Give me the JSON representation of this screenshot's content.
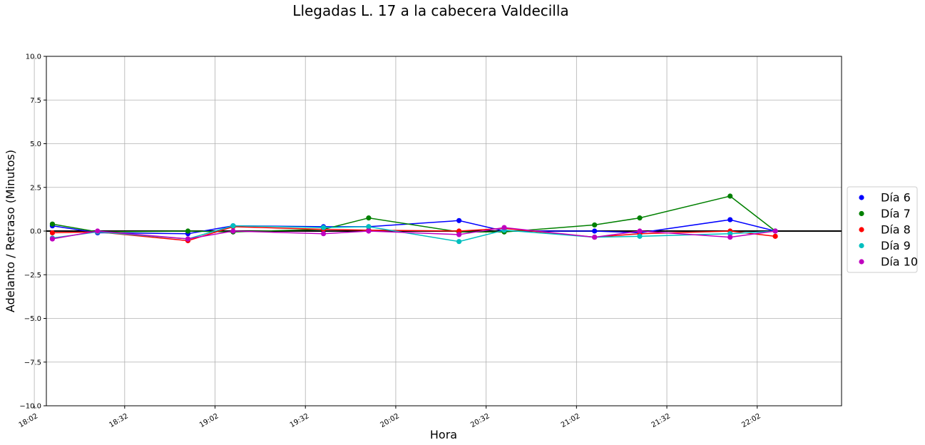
{
  "chart_data": {
    "type": "line",
    "title": "Llegadas L. 17 a la cabecera Valdecilla",
    "xlabel": "Hora",
    "ylabel": "Adelanto / Retraso (Minutos)",
    "x_domain_minutes": [
      1086,
      1350
    ],
    "x_ticks": [
      "18:02",
      "18:32",
      "19:02",
      "19:32",
      "20:02",
      "20:32",
      "21:02",
      "21:32",
      "22:02"
    ],
    "x_tick_minutes": [
      1082,
      1112,
      1142,
      1172,
      1202,
      1232,
      1262,
      1292,
      1322
    ],
    "ylim": [
      -10,
      10
    ],
    "y_ticks": [
      -10.0,
      -7.5,
      -5.0,
      -2.5,
      0.0,
      2.5,
      5.0,
      7.5,
      10.0
    ],
    "y_tick_labels": [
      "−10.0",
      "−7.5",
      "−5.0",
      "−2.5",
      "0.0",
      "2.5",
      "5.0",
      "7.5",
      "10.0"
    ],
    "grid": true,
    "reference_line_y": 0,
    "legend_position": "right-outside",
    "x": [
      "18:08",
      "18:23",
      "18:53",
      "19:08",
      "19:38",
      "19:53",
      "20:23",
      "20:38",
      "21:08",
      "21:23",
      "21:53",
      "22:08"
    ],
    "x_minutes": [
      1088,
      1103,
      1133,
      1148,
      1178,
      1193,
      1223,
      1238,
      1268,
      1283,
      1313,
      1328
    ],
    "series": [
      {
        "name": "Día 6",
        "color": "#0000ff",
        "values": [
          0.3,
          -0.1,
          -0.15,
          0.3,
          0.25,
          0.25,
          0.6,
          0.0,
          0.0,
          -0.1,
          0.65,
          0.0
        ]
      },
      {
        "name": "Día 7",
        "color": "#008000",
        "values": [
          0.4,
          -0.05,
          0.0,
          -0.05,
          0.1,
          0.75,
          -0.05,
          -0.05,
          0.35,
          0.75,
          2.0,
          0.0
        ]
      },
      {
        "name": "Día 8",
        "color": "#ff0000",
        "values": [
          -0.1,
          -0.05,
          -0.55,
          0.25,
          0.1,
          0.05,
          0.0,
          0.15,
          -0.35,
          -0.15,
          0.0,
          -0.3
        ]
      },
      {
        "name": "Día 9",
        "color": "#00bfbf",
        "values": [
          -0.4,
          -0.05,
          -0.45,
          0.3,
          0.2,
          0.25,
          -0.6,
          0.05,
          -0.35,
          -0.3,
          -0.15,
          0.0
        ]
      },
      {
        "name": "Día 10",
        "color": "#bf00bf",
        "values": [
          -0.45,
          0.0,
          -0.45,
          0.0,
          -0.15,
          0.0,
          -0.2,
          0.2,
          -0.35,
          0.0,
          -0.35,
          0.0
        ]
      }
    ]
  }
}
